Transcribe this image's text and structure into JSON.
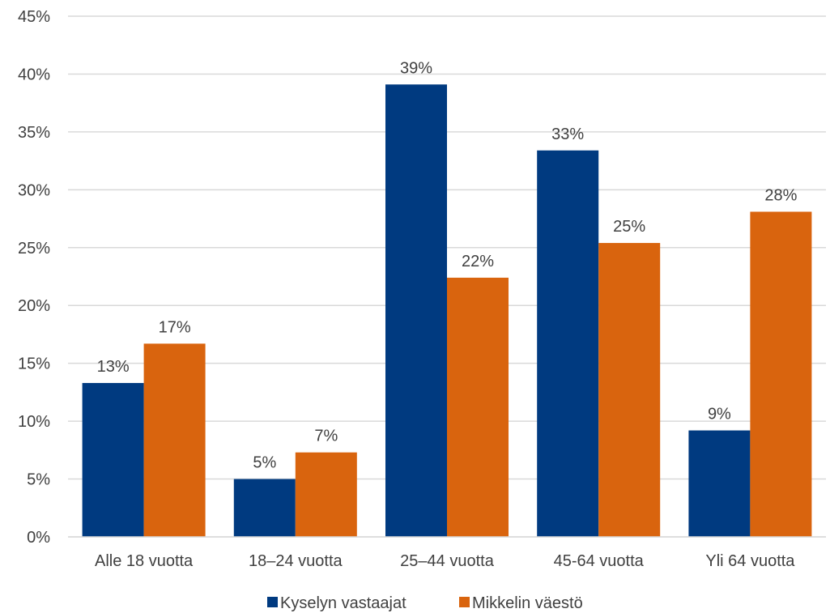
{
  "chart_data": {
    "type": "bar",
    "categories": [
      "Alle 18 vuotta",
      "18–24 vuotta",
      "25–44 vuotta",
      "45-64 vuotta",
      "Yli 64 vuotta"
    ],
    "series": [
      {
        "name": "Kyselyn vastaajat",
        "values": [
          13.3,
          5.0,
          39.1,
          33.4,
          9.2
        ],
        "labels": [
          "13%",
          "5%",
          "39%",
          "33%",
          "9%"
        ],
        "color": "#003A80"
      },
      {
        "name": "Mikkelin väestö",
        "values": [
          16.7,
          7.3,
          22.4,
          25.4,
          28.1
        ],
        "labels": [
          "17%",
          "7%",
          "22%",
          "25%",
          "28%"
        ],
        "color": "#D9640E"
      }
    ],
    "ylim": [
      0,
      45
    ],
    "yticks": [
      0,
      5,
      10,
      15,
      20,
      25,
      30,
      35,
      40,
      45
    ],
    "ytick_labels": [
      "0%",
      "5%",
      "10%",
      "15%",
      "20%",
      "25%",
      "30%",
      "35%",
      "40%",
      "45%"
    ],
    "grid": true,
    "legend_position": "bottom",
    "gridline_color": "#D9D9D9",
    "text_color": "#404040"
  }
}
